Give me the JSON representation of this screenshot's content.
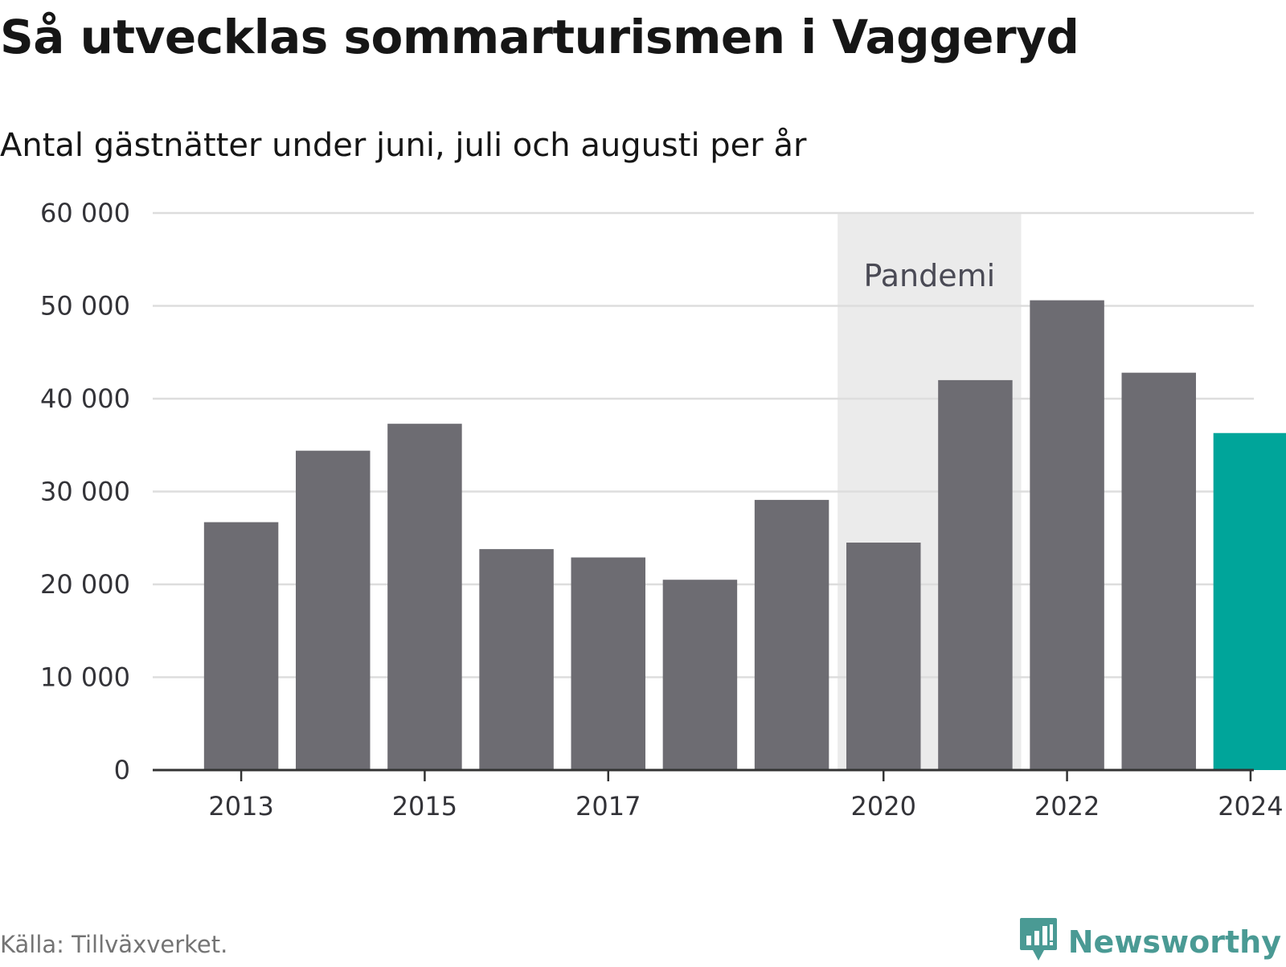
{
  "header": {
    "title": "Så utvecklas sommarturismen i Vaggeryd",
    "subtitle": "Antal gästnätter under juni, juli och augusti per år"
  },
  "footer": {
    "source": "Källa: Tillväxverket.",
    "brand": "Newsworthy",
    "brand_icon": "newsworthy-logo-icon"
  },
  "colors": {
    "bar": "#6d6c72",
    "highlight": "#00a59a",
    "band": "#ebebeb",
    "grid": "#dddddd",
    "axis": "#333333",
    "brand": "#4a9a94"
  },
  "chart_data": {
    "type": "bar",
    "categories": [
      "2013",
      "2014",
      "2015",
      "2016",
      "2017",
      "2018",
      "2019",
      "2020",
      "2021",
      "2022",
      "2023",
      "2024"
    ],
    "values": [
      26700,
      34400,
      37300,
      23800,
      22900,
      20500,
      29100,
      24500,
      42000,
      50600,
      42800,
      36300
    ],
    "highlight_category": "2024",
    "x_tick_labels": [
      "2013",
      "2015",
      "2017",
      "2020",
      "2022",
      "2024"
    ],
    "y_ticks": [
      0,
      10000,
      20000,
      30000,
      40000,
      50000,
      60000
    ],
    "y_tick_labels": [
      "0",
      "10 000",
      "20 000",
      "30 000",
      "40 000",
      "50 000",
      "60 000"
    ],
    "ylim": [
      0,
      60000
    ],
    "grid": true,
    "annotation": {
      "label": "Pandemi",
      "from_category": "2020",
      "to_category": "2021"
    },
    "xlabel": "",
    "ylabel": ""
  }
}
